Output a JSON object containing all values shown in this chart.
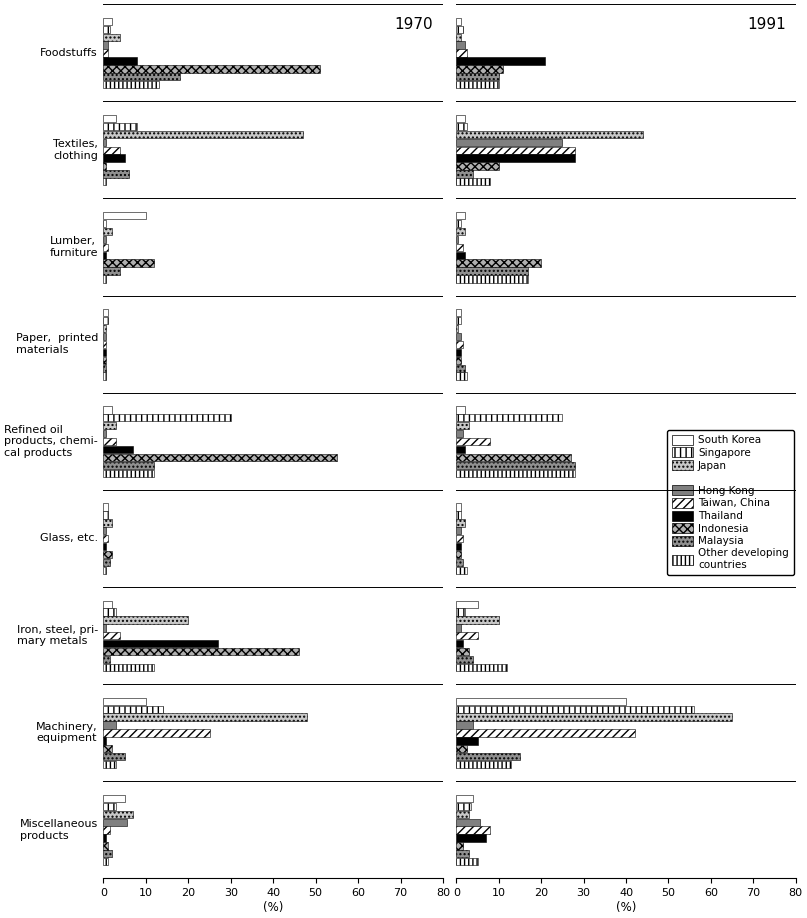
{
  "categories": [
    "Foodstuffs",
    "Textiles,\nclothing",
    "Lumber,\nfurniture",
    "Paper,  printed\nmaterials",
    "Refined oil\nproducts, chemi-\ncal products",
    "Glass, etc.",
    "Iron, steel, pri-\nmary metals",
    "Machinery,\nequipment",
    "Miscellaneous\nproducts"
  ],
  "cat_labels": [
    "Foodstuffs",
    "Textiles,\nclothing",
    "Lumber,\nfurniture",
    "Paper,  printed\nmaterials",
    "Refined oil\nproducts, chemi-\ncal products",
    "Glass, etc.",
    "Iron, steel, pri-\nmary metals",
    "Machinery,\nequipment",
    "Miscellaneous\nproducts"
  ],
  "countries": [
    "South Korea",
    "Singapore",
    "Japan",
    "Hong Kong",
    "Taiwan, China",
    "Thailand",
    "Indonesia",
    "Malaysia",
    "Other developing\ncountries"
  ],
  "data_1970": [
    [
      2.0,
      1.5,
      4.0,
      1.0,
      1.0,
      8.0,
      51.0,
      18.0,
      13.0
    ],
    [
      3.0,
      8.0,
      47.0,
      0.5,
      4.0,
      5.0,
      0.5,
      6.0,
      0.5
    ],
    [
      10.0,
      0.5,
      2.0,
      0.5,
      1.0,
      0.5,
      12.0,
      4.0,
      0.5
    ],
    [
      1.0,
      1.0,
      0.5,
      0.5,
      0.5,
      0.5,
      0.5,
      0.5,
      0.5
    ],
    [
      2.0,
      30.0,
      3.0,
      0.5,
      3.0,
      7.0,
      55.0,
      12.0,
      12.0
    ],
    [
      1.0,
      1.0,
      2.0,
      0.5,
      1.0,
      0.5,
      2.0,
      1.5,
      0.5
    ],
    [
      2.0,
      3.0,
      20.0,
      0.5,
      4.0,
      27.0,
      46.0,
      1.5,
      12.0
    ],
    [
      10.0,
      14.0,
      48.0,
      3.0,
      25.0,
      0.5,
      2.0,
      5.0,
      3.0
    ],
    [
      5.0,
      3.0,
      7.0,
      5.5,
      1.5,
      0.5,
      1.0,
      2.0,
      1.0
    ]
  ],
  "data_1991": [
    [
      1.0,
      1.5,
      1.0,
      2.0,
      2.5,
      21.0,
      11.0,
      10.0,
      10.0
    ],
    [
      2.0,
      2.5,
      44.0,
      25.0,
      28.0,
      28.0,
      10.0,
      4.0,
      8.0
    ],
    [
      2.0,
      1.0,
      2.0,
      0.5,
      1.5,
      2.0,
      20.0,
      17.0,
      17.0
    ],
    [
      1.0,
      1.0,
      0.5,
      1.0,
      1.5,
      1.0,
      1.0,
      2.0,
      2.5
    ],
    [
      2.0,
      25.0,
      3.0,
      1.5,
      8.0,
      2.0,
      27.0,
      28.0,
      28.0
    ],
    [
      1.0,
      1.0,
      2.0,
      1.0,
      1.5,
      1.0,
      1.0,
      1.5,
      2.5
    ],
    [
      5.0,
      2.0,
      10.0,
      1.0,
      5.0,
      1.5,
      3.0,
      4.0,
      12.0
    ],
    [
      40.0,
      56.0,
      65.0,
      4.0,
      42.0,
      5.0,
      2.5,
      15.0,
      13.0
    ],
    [
      4.0,
      3.5,
      3.0,
      5.5,
      8.0,
      7.0,
      1.5,
      3.0,
      5.0
    ]
  ],
  "country_styles": [
    {
      "fc": "white",
      "hatch": "",
      "ec": "black",
      "label": "South Korea"
    },
    {
      "fc": "white",
      "hatch": "|||",
      "ec": "black",
      "label": "Singapore"
    },
    {
      "fc": "#c8c8c8",
      "hatch": "....",
      "ec": "black",
      "label": "Japan"
    },
    {
      "fc": "#808080",
      "hatch": "",
      "ec": "black",
      "label": "Hong Kong"
    },
    {
      "fc": "white",
      "hatch": "////",
      "ec": "black",
      "label": "Taiwan, China"
    },
    {
      "fc": "black",
      "hatch": "",
      "ec": "black",
      "label": "Thailand"
    },
    {
      "fc": "#b0b0b0",
      "hatch": "xxxx",
      "ec": "black",
      "label": "Indonesia"
    },
    {
      "fc": "#909090",
      "hatch": "....",
      "ec": "black",
      "label": "Malaysia"
    },
    {
      "fc": "white",
      "hatch": "||||",
      "ec": "black",
      "label": "Other developing\ncountries"
    }
  ],
  "xlim": [
    0,
    80
  ],
  "xticks": [
    0,
    10,
    20,
    30,
    40,
    50,
    60,
    70,
    80
  ],
  "year1": "1970",
  "year2": "1991"
}
